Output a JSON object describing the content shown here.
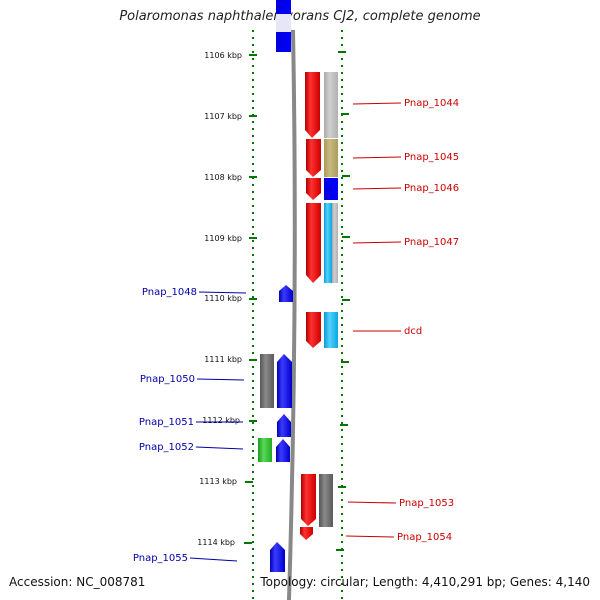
{
  "title": "Polaromonas naphthalenivorans CJ2, complete genome",
  "ticks": [
    "1106 kbp",
    "1107 kbp",
    "1108 kbp",
    "1109 kbp",
    "1110 kbp",
    "1111 kbp",
    "1112 kbp",
    "1113 kbp",
    "1114 kbp"
  ],
  "genes_right": [
    {
      "name": "Pnap_1044",
      "color": "#cc0000"
    },
    {
      "name": "Pnap_1045",
      "color": "#cc0000"
    },
    {
      "name": "Pnap_1046",
      "color": "#cc0000"
    },
    {
      "name": "Pnap_1047",
      "color": "#cc0000"
    },
    {
      "name": "dcd",
      "color": "#cc0000"
    },
    {
      "name": "Pnap_1053",
      "color": "#cc0000"
    },
    {
      "name": "Pnap_1054",
      "color": "#cc0000"
    }
  ],
  "genes_left": [
    {
      "name": "Pnap_1048",
      "color": "#0000aa"
    },
    {
      "name": "Pnap_1050",
      "color": "#0000aa"
    },
    {
      "name": "Pnap_1051",
      "color": "#0000aa"
    },
    {
      "name": "Pnap_1052",
      "color": "#0000aa"
    },
    {
      "name": "Pnap_1055",
      "color": "#0000aa"
    }
  ],
  "footer": {
    "accession": "Accession: NC_008781",
    "summary": "Topology: circular; Length: 4,410,291 bp; Genes: 4,140"
  }
}
